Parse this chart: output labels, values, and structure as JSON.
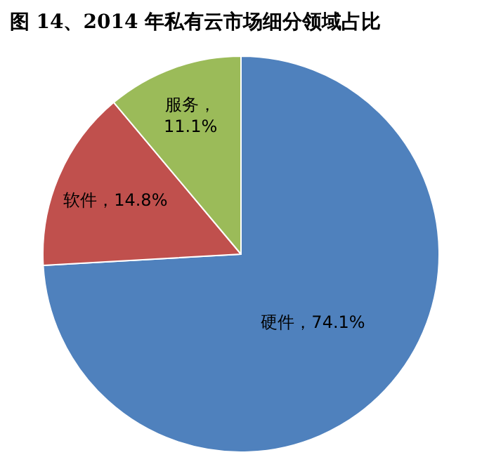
{
  "chart_data": {
    "type": "pie",
    "title": "图 14、2014 年私有云市场细分领域占比",
    "categories": [
      "硬件",
      "软件",
      "服务"
    ],
    "values": [
      74.1,
      14.8,
      11.1
    ],
    "colors": [
      "#4f81bd",
      "#c0504d",
      "#9bbb59"
    ],
    "value_labels": [
      "，74.1%",
      "，14.8%",
      "，\n11.1%"
    ],
    "legend": false
  }
}
